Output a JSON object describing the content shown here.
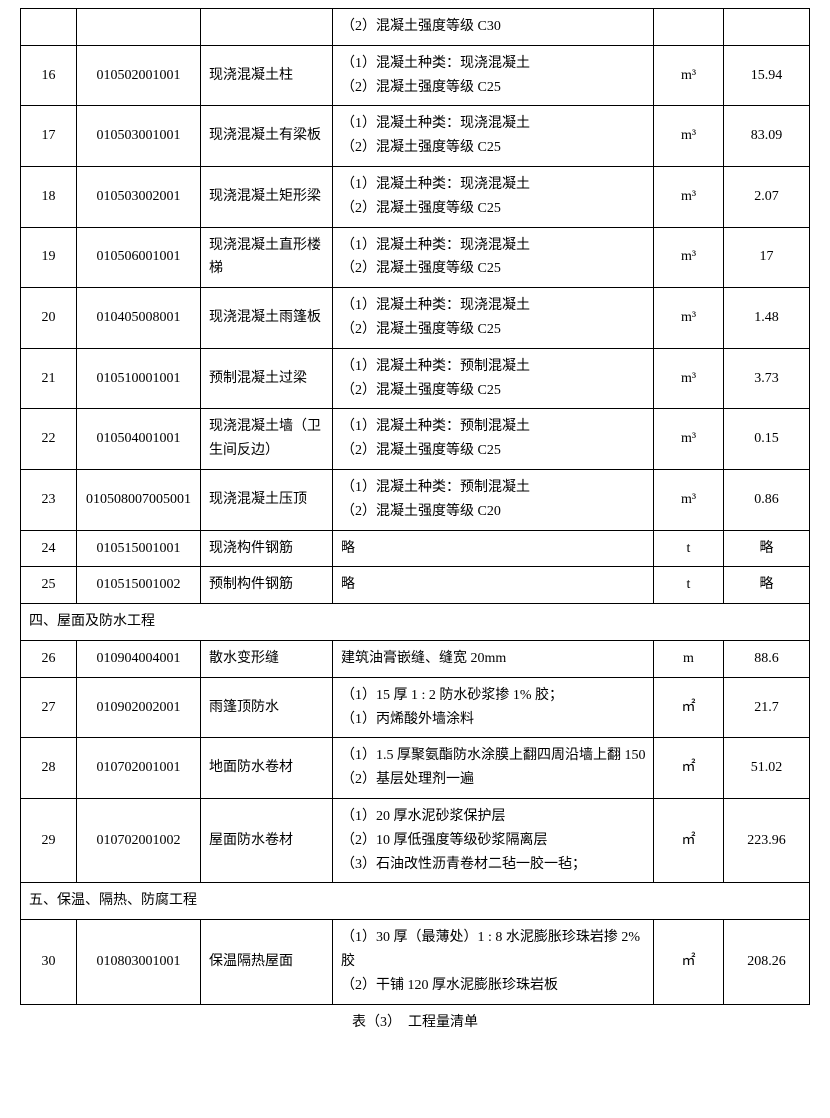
{
  "table": {
    "colors": {
      "border": "#000000",
      "bg": "#ffffff",
      "text": "#000000"
    },
    "fontsize": 14,
    "rows": [
      {
        "type": "cont",
        "c4": "（2）混凝土强度等级 C30"
      },
      {
        "type": "row",
        "c1": "16",
        "c2": "010502001001",
        "c3": "现浇混凝土柱",
        "c4": "（1）混凝土种类：现浇混凝土\n（2）混凝土强度等级 C25",
        "c5": "m³",
        "c6": "15.94"
      },
      {
        "type": "row",
        "c1": "17",
        "c2": "010503001001",
        "c3": "现浇混凝土有梁板",
        "c4": "（1）混凝土种类：现浇混凝土\n（2）混凝土强度等级 C25",
        "c5": "m³",
        "c6": "83.09"
      },
      {
        "type": "row",
        "c1": "18",
        "c2": "010503002001",
        "c3": "现浇混凝土矩形梁",
        "c4": "（1）混凝土种类：现浇混凝土\n（2）混凝土强度等级 C25",
        "c5": "m³",
        "c6": "2.07"
      },
      {
        "type": "row",
        "c1": "19",
        "c2": "010506001001",
        "c3": "现浇混凝土直形楼梯",
        "c4": "（1）混凝土种类：现浇混凝土\n（2）混凝土强度等级 C25",
        "c5": "m³",
        "c6": "17"
      },
      {
        "type": "row",
        "c1": "20",
        "c2": "010405008001",
        "c3": "现浇混凝土雨篷板",
        "c4": "（1）混凝土种类：现浇混凝土\n（2）混凝土强度等级 C25",
        "c5": "m³",
        "c6": "1.48"
      },
      {
        "type": "row",
        "c1": "21",
        "c2": "010510001001",
        "c3": "预制混凝土过梁",
        "c4": "（1）混凝土种类：预制混凝土\n（2）混凝土强度等级 C25",
        "c5": "m³",
        "c6": "3.73"
      },
      {
        "type": "row",
        "c1": "22",
        "c2": "010504001001",
        "c3": "现浇混凝土墙（卫生间反边）",
        "c4": "（1）混凝土种类：预制混凝土\n（2）混凝土强度等级 C25",
        "c5": "m³",
        "c6": "0.15"
      },
      {
        "type": "row",
        "c1": "23",
        "c2": "010508007005001",
        "c3": "现浇混凝土压顶",
        "c4": "（1）混凝土种类：预制混凝土\n（2）混凝土强度等级 C20",
        "c5": "m³",
        "c6": "0.86"
      },
      {
        "type": "row",
        "c1": "24",
        "c2": "010515001001",
        "c3": "现浇构件钢筋",
        "c4": "略",
        "c5": "t",
        "c6": "略"
      },
      {
        "type": "row",
        "c1": "25",
        "c2": "010515001002",
        "c3": "预制构件钢筋",
        "c4": "略",
        "c5": "t",
        "c6": "略"
      },
      {
        "type": "section",
        "text": "四、屋面及防水工程"
      },
      {
        "type": "row",
        "c1": "26",
        "c2": "010904004001",
        "c3": "散水变形缝",
        "c4": "建筑油膏嵌缝、缝宽 20mm",
        "c5": "m",
        "c6": "88.6"
      },
      {
        "type": "row",
        "c1": "27",
        "c2": "010902002001",
        "c3": "雨篷顶防水",
        "c4": "（1）15 厚 1 : 2 防水砂浆掺 1% 胶；\n（1）丙烯酸外墙涂料",
        "c5": "㎡",
        "c6": "21.7"
      },
      {
        "type": "row",
        "c1": "28",
        "c2": "010702001001",
        "c3": "地面防水卷材",
        "c4": "（1）1.5 厚聚氨酯防水涂膜上翻四周沿墙上翻 150\n（2）基层处理剂一遍",
        "c5": "㎡",
        "c6": "51.02"
      },
      {
        "type": "row",
        "c1": "29",
        "c2": "010702001002",
        "c3": "屋面防水卷材",
        "c4": "（1）20 厚水泥砂浆保护层\n（2）10 厚低强度等级砂浆隔离层\n（3）石油改性沥青卷材二毡一胶一毡；",
        "c5": "㎡",
        "c6": "223.96"
      },
      {
        "type": "section",
        "text": "五、保温、隔热、防腐工程"
      },
      {
        "type": "row",
        "c1": "30",
        "c2": "010803001001",
        "c3": "保温隔热屋面",
        "c4": "（1）30 厚（最薄处）1 : 8 水泥膨胀珍珠岩掺 2% 胶\n（2）干铺 120 厚水泥膨胀珍珠岩板",
        "c5": "㎡",
        "c6": "208.26"
      }
    ]
  },
  "footer": "表（3）　工程量清单"
}
